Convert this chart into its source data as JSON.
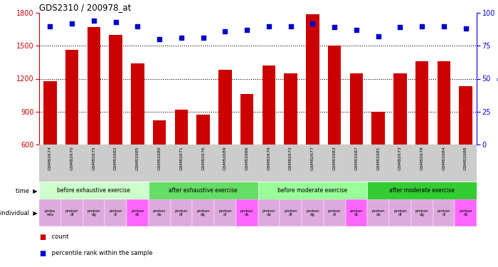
{
  "title": "GDS2310 / 200978_at",
  "samples": [
    "GSM82674",
    "GSM82670",
    "GSM82675",
    "GSM82682",
    "GSM82685",
    "GSM82680",
    "GSM82671",
    "GSM82676",
    "GSM82689",
    "GSM82686",
    "GSM82679",
    "GSM82672",
    "GSM82677",
    "GSM82683",
    "GSM82687",
    "GSM82681",
    "GSM82673",
    "GSM82678",
    "GSM82684",
    "GSM82688"
  ],
  "counts": [
    1175,
    1460,
    1670,
    1600,
    1340,
    820,
    920,
    870,
    1280,
    1060,
    1320,
    1250,
    1790,
    1500,
    1250,
    900,
    1250,
    1360,
    1360,
    1130
  ],
  "percentile_ranks": [
    90,
    92,
    94,
    93,
    90,
    80,
    81,
    81,
    86,
    87,
    90,
    90,
    92,
    89,
    87,
    82,
    89,
    90,
    90,
    88
  ],
  "ylim_left": [
    600,
    1800
  ],
  "ylim_right": [
    0,
    100
  ],
  "yticks_left": [
    600,
    900,
    1200,
    1500,
    1800
  ],
  "yticks_right": [
    0,
    25,
    50,
    75,
    100
  ],
  "bar_color": "#cc0000",
  "dot_color": "#0000cc",
  "time_groups": [
    {
      "label": "before exhaustive exercise",
      "start": 0,
      "end": 5,
      "color": "#ccffcc"
    },
    {
      "label": "after exhaustive exercise",
      "start": 5,
      "end": 10,
      "color": "#66dd66"
    },
    {
      "label": "before moderate exercise",
      "start": 10,
      "end": 15,
      "color": "#99ff99"
    },
    {
      "label": "after moderate exercise",
      "start": 15,
      "end": 20,
      "color": "#33cc33"
    }
  ],
  "individual_labels": [
    "proba\nnda",
    "proban\ndf",
    "proban\ndg",
    "proban\ndi",
    "proban\ndk",
    "proban\nda",
    "proban\ndf",
    "proban\ndg",
    "proban\ndi",
    "proban\ndk",
    "proban\nda",
    "proban\ndf",
    "proban\ndg",
    "proban\ndi",
    "proban\ndk",
    "proban\nda",
    "proban\ndf",
    "proban\ndg",
    "proban\ndi",
    "proban\ndk"
  ],
  "individual_colors": [
    "#ddaadd",
    "#ddaadd",
    "#ddaadd",
    "#ddaadd",
    "#ff66ff",
    "#ddaadd",
    "#ddaadd",
    "#ddaadd",
    "#ddaadd",
    "#ff66ff",
    "#ddaadd",
    "#ddaadd",
    "#ddaadd",
    "#ddaadd",
    "#ff66ff",
    "#ddaadd",
    "#ddaadd",
    "#ddaadd",
    "#ddaadd",
    "#ff66ff"
  ],
  "bg_color": "#ffffff",
  "left_axis_color": "#cc0000",
  "right_axis_color": "#0000cc",
  "xticklabel_bg": "#cccccc"
}
